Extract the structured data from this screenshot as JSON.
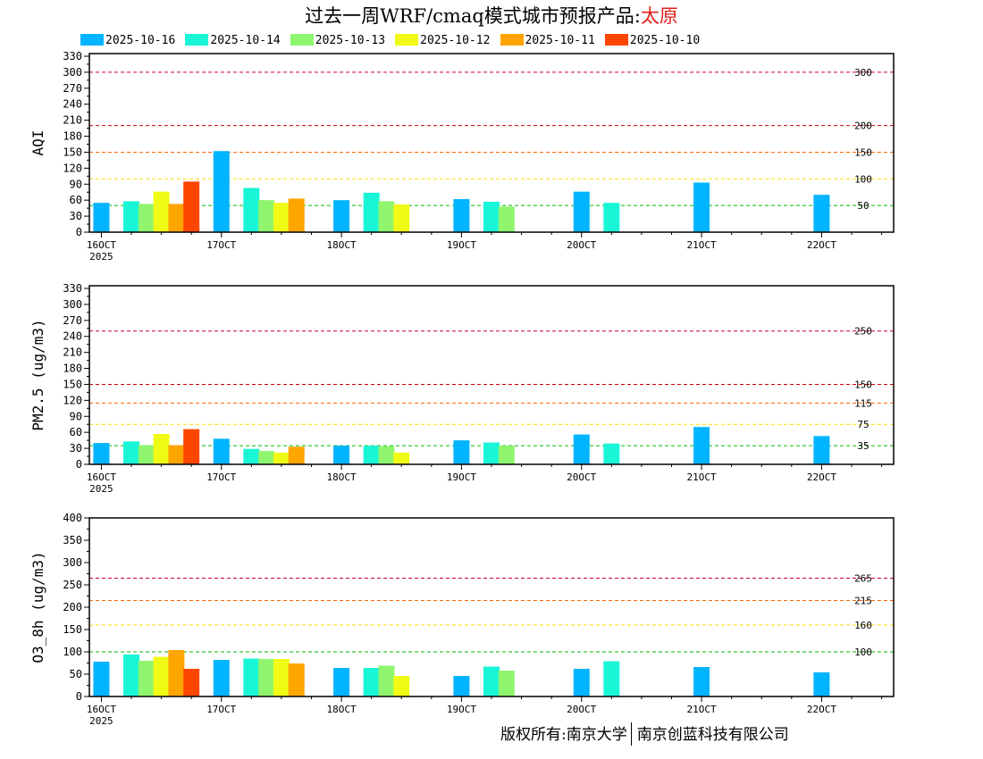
{
  "title": {
    "main": "过去一周WRF/cmaq模式城市预报产品:",
    "city": "太原"
  },
  "legend": [
    {
      "label": "2025-10-16",
      "color": "#00b4ff"
    },
    {
      "label": "2025-10-14",
      "color": "#19f5d7"
    },
    {
      "label": "2025-10-13",
      "color": "#8ff56e"
    },
    {
      "label": "2025-10-12",
      "color": "#f0fa14"
    },
    {
      "label": "2025-10-11",
      "color": "#ffa500"
    },
    {
      "label": "2025-10-10",
      "color": "#ff4600"
    }
  ],
  "footer": {
    "left": "版权所有:南京大学",
    "right": "南京创蓝科技有限公司"
  },
  "chart_data": [
    {
      "type": "bar",
      "ylabel": "AQI",
      "ylim": [
        0,
        335
      ],
      "yticks": [
        0,
        30,
        60,
        90,
        120,
        150,
        180,
        210,
        240,
        270,
        300,
        330
      ],
      "xlim": [
        15.9,
        22.6
      ],
      "xticks": [
        {
          "value": 16,
          "label": "16OCT",
          "sub": "2025"
        },
        {
          "value": 17,
          "label": "17OCT"
        },
        {
          "value": 18,
          "label": "18OCT"
        },
        {
          "value": 19,
          "label": "19OCT"
        },
        {
          "value": 20,
          "label": "20OCT"
        },
        {
          "value": 21,
          "label": "21OCT"
        },
        {
          "value": 22,
          "label": "22OCT"
        }
      ],
      "thresholds": [
        {
          "value": 300,
          "label": "300",
          "color": "#cc0033"
        },
        {
          "value": 200,
          "label": "200",
          "color": "#cc0000"
        },
        {
          "value": 150,
          "label": "150",
          "color": "#ff6600"
        },
        {
          "value": 100,
          "label": "100",
          "color": "#ffdd00"
        },
        {
          "value": 50,
          "label": "50",
          "color": "#00bb00"
        }
      ],
      "series": [
        {
          "name": "2025-10-16",
          "x": [
            16.0,
            17.0,
            18.0,
            19.0,
            20.0,
            21.0,
            22.0
          ],
          "values": [
            55,
            152,
            60,
            62,
            76,
            93,
            70
          ]
        },
        {
          "name": "2025-10-14",
          "x": [
            16.25,
            17.25,
            18.25,
            19.25,
            20.25
          ],
          "values": [
            58,
            83,
            74,
            57,
            55
          ]
        },
        {
          "name": "2025-10-13",
          "x": [
            16.375,
            17.375,
            18.375,
            19.375
          ],
          "values": [
            53,
            60,
            58,
            48
          ]
        },
        {
          "name": "2025-10-12",
          "x": [
            16.5,
            17.5,
            18.5
          ],
          "values": [
            76,
            55,
            52
          ]
        },
        {
          "name": "2025-10-11",
          "x": [
            16.625,
            17.625
          ],
          "values": [
            53,
            63
          ]
        },
        {
          "name": "2025-10-10",
          "x": [
            16.75
          ],
          "values": [
            95
          ]
        }
      ]
    },
    {
      "type": "bar",
      "ylabel": "PM2.5 (ug/m3)",
      "ylim": [
        0,
        335
      ],
      "yticks": [
        0,
        30,
        60,
        90,
        120,
        150,
        180,
        210,
        240,
        270,
        300,
        330
      ],
      "xlim": [
        15.9,
        22.6
      ],
      "xticks": [
        {
          "value": 16,
          "label": "16OCT",
          "sub": "2025"
        },
        {
          "value": 17,
          "label": "17OCT"
        },
        {
          "value": 18,
          "label": "18OCT"
        },
        {
          "value": 19,
          "label": "19OCT"
        },
        {
          "value": 20,
          "label": "20OCT"
        },
        {
          "value": 21,
          "label": "21OCT"
        },
        {
          "value": 22,
          "label": "22OCT"
        }
      ],
      "thresholds": [
        {
          "value": 250,
          "label": "250",
          "color": "#cc0033"
        },
        {
          "value": 150,
          "label": "150",
          "color": "#cc0000"
        },
        {
          "value": 115,
          "label": "115",
          "color": "#ff6600"
        },
        {
          "value": 75,
          "label": "75",
          "color": "#ffdd00"
        },
        {
          "value": 35,
          "label": "35",
          "color": "#00bb00"
        }
      ],
      "series": [
        {
          "name": "2025-10-16",
          "x": [
            16.0,
            17.0,
            18.0,
            19.0,
            20.0,
            21.0,
            22.0
          ],
          "values": [
            40,
            48,
            35,
            45,
            56,
            70,
            53
          ]
        },
        {
          "name": "2025-10-14",
          "x": [
            16.25,
            17.25,
            18.25,
            19.25,
            20.25
          ],
          "values": [
            43,
            29,
            35,
            41,
            39
          ]
        },
        {
          "name": "2025-10-13",
          "x": [
            16.375,
            17.375,
            18.375,
            19.375
          ],
          "values": [
            36,
            25,
            34,
            35
          ]
        },
        {
          "name": "2025-10-12",
          "x": [
            16.5,
            17.5,
            18.5
          ],
          "values": [
            57,
            22,
            22
          ]
        },
        {
          "name": "2025-10-11",
          "x": [
            16.625,
            17.625
          ],
          "values": [
            36,
            33
          ]
        },
        {
          "name": "2025-10-10",
          "x": [
            16.75
          ],
          "values": [
            66
          ]
        }
      ]
    },
    {
      "type": "bar",
      "ylabel": "O3_8h (ug/m3)",
      "ylim": [
        0,
        400
      ],
      "yticks": [
        0,
        50,
        100,
        150,
        200,
        250,
        300,
        350,
        400
      ],
      "xlim": [
        15.9,
        22.6
      ],
      "xticks": [
        {
          "value": 16,
          "label": "16OCT",
          "sub": "2025"
        },
        {
          "value": 17,
          "label": "17OCT"
        },
        {
          "value": 18,
          "label": "18OCT"
        },
        {
          "value": 19,
          "label": "19OCT"
        },
        {
          "value": 20,
          "label": "20OCT"
        },
        {
          "value": 21,
          "label": "21OCT"
        },
        {
          "value": 22,
          "label": "22OCT"
        }
      ],
      "thresholds": [
        {
          "value": 265,
          "label": "265",
          "color": "#cc0033"
        },
        {
          "value": 215,
          "label": "215",
          "color": "#ff6600"
        },
        {
          "value": 160,
          "label": "160",
          "color": "#ffdd00"
        },
        {
          "value": 100,
          "label": "100",
          "color": "#00bb00"
        }
      ],
      "series": [
        {
          "name": "2025-10-16",
          "x": [
            16.0,
            17.0,
            18.0,
            19.0,
            20.0,
            21.0,
            22.0
          ],
          "values": [
            78,
            82,
            64,
            46,
            62,
            66,
            54
          ]
        },
        {
          "name": "2025-10-14",
          "x": [
            16.25,
            17.25,
            18.25,
            19.25,
            20.25
          ],
          "values": [
            94,
            85,
            64,
            67,
            79
          ]
        },
        {
          "name": "2025-10-13",
          "x": [
            16.375,
            17.375,
            18.375,
            19.375
          ],
          "values": [
            80,
            84,
            69,
            58
          ]
        },
        {
          "name": "2025-10-12",
          "x": [
            16.5,
            17.5,
            18.5
          ],
          "values": [
            89,
            84,
            46
          ]
        },
        {
          "name": "2025-10-11",
          "x": [
            16.625,
            17.625
          ],
          "values": [
            104,
            74
          ]
        },
        {
          "name": "2025-10-10",
          "x": [
            16.75
          ],
          "values": [
            62
          ]
        }
      ]
    }
  ]
}
